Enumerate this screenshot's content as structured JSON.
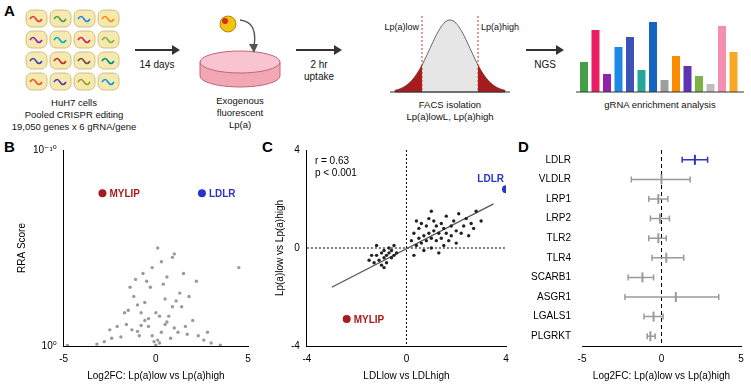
{
  "panel_labels": [
    "A",
    "B",
    "C",
    "D"
  ],
  "diagram": {
    "cells_caption": [
      "HuH7 cells",
      "Pooled CRISPR editing",
      "19,050 genes x 6 gRNA/gene"
    ],
    "arrow_1": [
      "14 days"
    ],
    "dish_caption": [
      "Exogenous",
      "fluorescent",
      "Lp(a)"
    ],
    "arrow_2": [
      "2 hr",
      "uptake"
    ],
    "facs_gates": [
      "Lp(a)low",
      "Lp(a)high"
    ],
    "facs_caption": [
      "FACS isolation",
      "Lp(a)lowL, Lp(a)high"
    ],
    "arrow_3": [
      "NGS"
    ],
    "ngs_caption": [
      "gRNA enrichment analysis"
    ]
  },
  "chart_data": [
    {
      "panel": "B",
      "type": "scatter",
      "xlabel": "Log2FC: Lp(a)low vs Lp(a)high",
      "ylabel": "RRA Score",
      "log": "y",
      "grid": false,
      "marker": "circle",
      "xlim": [
        -5,
        5
      ],
      "xticks": [
        -5,
        0,
        5
      ],
      "ylim": [
        1,
        1e-10
      ],
      "yticks": [
        {
          "value": 1e-10,
          "label": "10⁻¹⁰"
        },
        {
          "value": 1,
          "label": "10⁰"
        }
      ],
      "series": [
        {
          "color": "#9a9a9a",
          "x": [
            0.1,
            -0.2,
            0.3,
            -0.4,
            0.5,
            -0.6,
            0.7,
            -0.8,
            0.9,
            -1.0,
            1.1,
            -1.2,
            1.3,
            -0.3,
            0.4,
            -0.5,
            0.6,
            1.5,
            -1.4,
            1.8,
            -1.7,
            2.0,
            -2.1,
            2.3,
            -2.4,
            0.0,
            0.2,
            -0.1,
            0.8,
            -0.9,
            1.2,
            -1.3,
            1.6,
            -1.6,
            2.6,
            -2.8,
            3.0,
            -3.2,
            3.5,
            -4.8,
            4.5,
            0.3,
            -0.2,
            0.9,
            1.0,
            -0.7,
            0.1,
            2.2,
            -1.1,
            0.5,
            -0.6,
            1.4,
            -1.5,
            0.0,
            0.2,
            -0.4,
            0.6,
            -0.8,
            1.0,
            -1.0,
            1.7,
            -1.9,
            2.8,
            -2.5
          ],
          "values": [
            0.5,
            0.3,
            0.2,
            0.1,
            0.08,
            0.05,
            0.03,
            0.02,
            0.01,
            0.008,
            0.005,
            0.003,
            0.002,
            0.001,
            0.0007,
            0.0005,
            0.0003,
            0.0002,
            0.001,
            0.003,
            0.02,
            0.05,
            0.1,
            0.3,
            0.4,
            0.9,
            0.7,
            0.6,
            0.4,
            0.3,
            0.2,
            0.15,
            0.1,
            0.08,
            0.5,
            0.6,
            0.7,
            0.8,
            0.9,
            0.95,
            0.0001,
            5e-05,
            0.0001,
            3e-05,
            2e-05,
            0.0002,
            1e-05,
            0.0005,
            0.0004,
            0.004,
            0.006,
            0.01,
            0.015,
            0.02,
            0.03,
            0.04,
            0.06,
            0.09,
            0.12,
            0.18,
            0.25,
            0.35,
            0.2,
            0.15
          ]
        },
        {
          "name": "MYLIP",
          "color": "#a61c1c",
          "x": [
            -2.9
          ],
          "values": [
            1.6e-08
          ]
        },
        {
          "name": "LDLR",
          "color": "#2a35c8",
          "x": [
            2.5
          ],
          "values": [
            1.6e-08
          ]
        }
      ]
    },
    {
      "panel": "C",
      "type": "scatter",
      "xlabel": "LDLlow vs LDLhigh",
      "ylabel": "Lp(a)low vs Lp(a)high",
      "grid": false,
      "marker": "circle",
      "xlim": [
        -4,
        4
      ],
      "xticks": [
        -4,
        0,
        4
      ],
      "ylim": [
        -4,
        4
      ],
      "yticks": [
        -4,
        0,
        4
      ],
      "annotations": [
        "r = 0.63",
        "p < 0.001"
      ],
      "ref_lines": {
        "x": 0,
        "y": 0
      },
      "series": [
        {
          "color": "#222222",
          "x": [
            -1.3,
            -1.2,
            -1.1,
            -1.0,
            -1.0,
            -0.9,
            -0.9,
            -0.8,
            -0.8,
            -0.7,
            -0.7,
            -0.6,
            -0.6,
            -0.5,
            -1.4,
            -1.5,
            -0.4,
            -1.2,
            -0.9,
            -0.5,
            0.2,
            0.3,
            0.4,
            0.5,
            0.5,
            0.6,
            0.6,
            0.7,
            0.7,
            0.8,
            0.8,
            0.9,
            0.9,
            1.0,
            1.0,
            1.1,
            1.1,
            1.2,
            1.2,
            1.3,
            1.3,
            1.4,
            1.4,
            1.5,
            1.5,
            1.6,
            1.6,
            1.7,
            1.8,
            1.8,
            1.9,
            2.0,
            2.0,
            2.1,
            2.2,
            2.3,
            2.4,
            2.5,
            2.6,
            2.7,
            2.8,
            3.0,
            0.3,
            0.4,
            1.0
          ],
          "values": [
            -0.6,
            -0.3,
            -0.5,
            -0.2,
            -0.7,
            -0.4,
            -0.1,
            -0.3,
            -0.6,
            -0.2,
            0.0,
            -0.4,
            -0.1,
            -0.3,
            -0.3,
            -0.5,
            -0.2,
            0.1,
            -0.8,
            0.1,
            0.3,
            0.6,
            0.1,
            0.8,
            0.4,
            1.0,
            0.2,
            0.5,
            -0.1,
            0.9,
            0.3,
            0.6,
            1.2,
            0.4,
            0.0,
            0.7,
            1.1,
            0.3,
            0.9,
            0.6,
            -0.2,
            1.0,
            0.4,
            0.8,
            0.1,
            0.6,
            1.3,
            0.3,
            0.9,
            0.5,
            1.1,
            0.7,
            0.2,
            1.4,
            0.6,
            0.9,
            1.2,
            0.5,
            1.0,
            0.8,
            1.5,
            1.1,
            -0.3,
            1.1,
            1.5
          ]
        },
        {
          "type": "line",
          "color": "#555555",
          "x": [
            -3,
            3.5
          ],
          "values": [
            -1.6,
            1.8
          ]
        },
        {
          "name": "MYLIP",
          "color": "#a61c1c",
          "x": [
            -2.4
          ],
          "values": [
            -2.9
          ]
        },
        {
          "name": "LDLR",
          "color": "#2a35c8",
          "x": [
            4.0
          ],
          "values": [
            2.4
          ]
        }
      ]
    },
    {
      "panel": "D",
      "type": "dot",
      "orientation": "horizontal",
      "xlabel": "Log2FC: Lp(a)low vs Lp(a)high",
      "grid": false,
      "marker": "line",
      "xlim": [
        -5,
        5
      ],
      "xticks": [
        -5,
        0,
        5
      ],
      "ref_lines": {
        "x": 0
      },
      "categories": [
        "LDLR",
        "VLDLR",
        "LRP1",
        "LRP2",
        "TLR2",
        "TLR4",
        "SCARB1",
        "ASGR1",
        "LGALS1",
        "PLGRKT"
      ],
      "values": [
        2.1,
        0.0,
        -0.2,
        -0.1,
        -0.2,
        0.3,
        -1.2,
        0.9,
        -0.5,
        -0.7
      ],
      "ci_low": [
        1.3,
        -1.9,
        -0.8,
        -0.7,
        -0.8,
        -0.6,
        -2.1,
        -2.3,
        -1.1,
        -0.9
      ],
      "ci_high": [
        2.9,
        1.8,
        0.4,
        0.5,
        0.3,
        1.4,
        -0.5,
        3.6,
        0.1,
        -0.4
      ],
      "colors": [
        "#2a35c8",
        "#9a9a9a",
        "#9a9a9a",
        "#9a9a9a",
        "#9a9a9a",
        "#9a9a9a",
        "#9a9a9a",
        "#9a9a9a",
        "#9a9a9a",
        "#9a9a9a"
      ]
    }
  ]
}
